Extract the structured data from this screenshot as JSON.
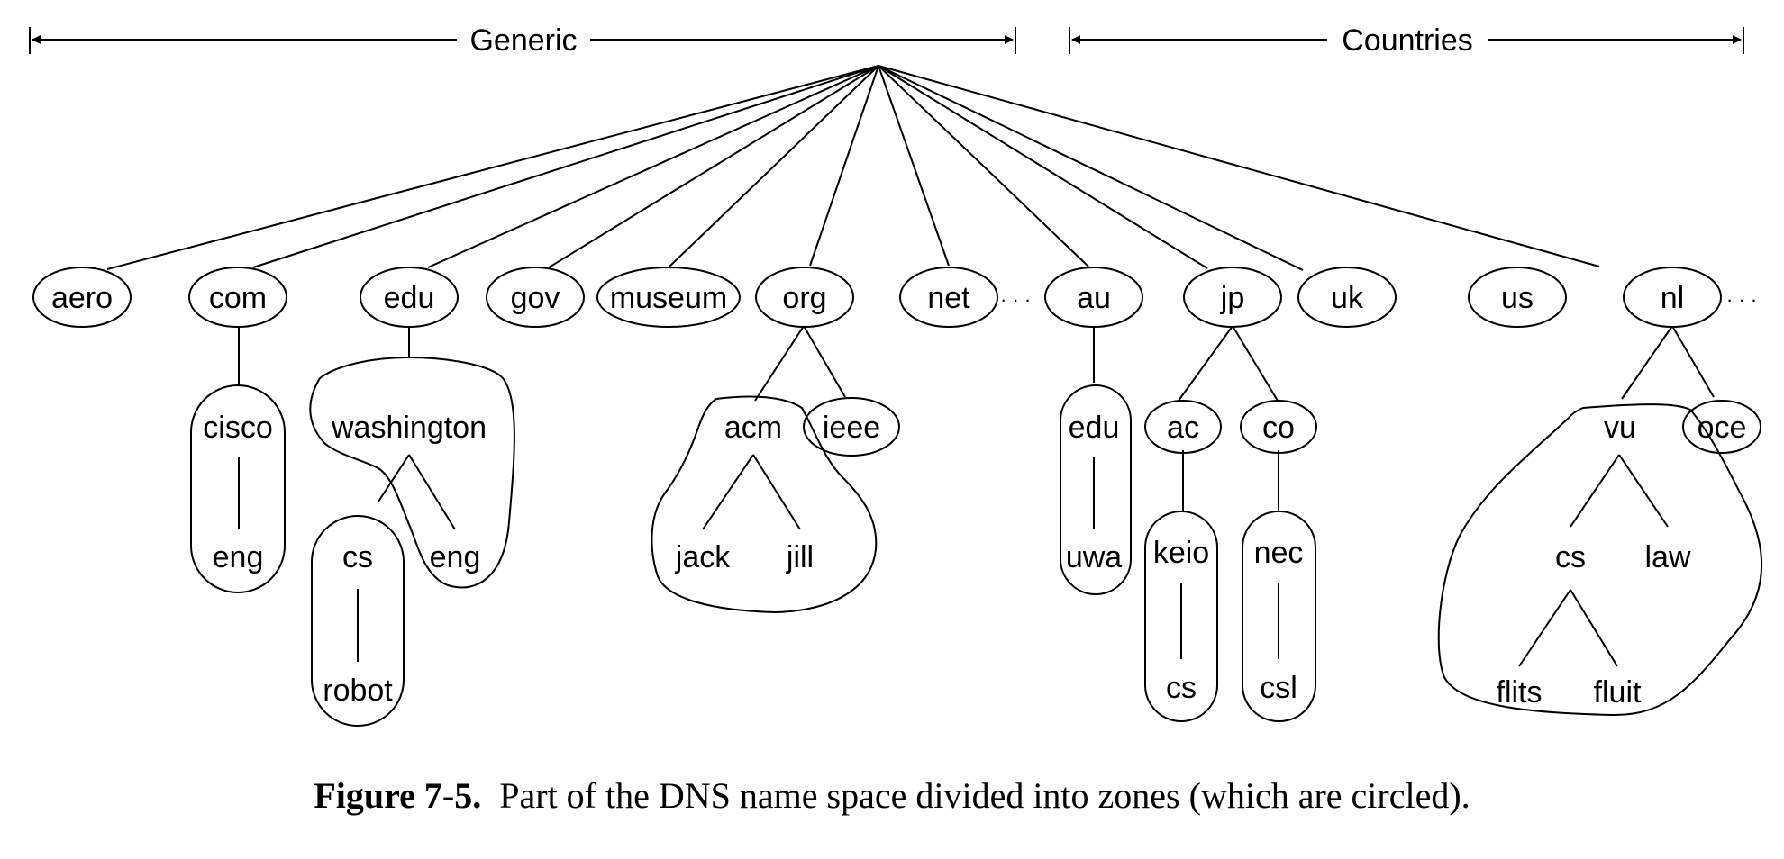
{
  "ranges": {
    "generic": "Generic",
    "countries": "Countries"
  },
  "nodes": {
    "aero": "aero",
    "com": "com",
    "edu": "edu",
    "gov": "gov",
    "museum": "museum",
    "org": "org",
    "net": "net",
    "au": "au",
    "jp": "jp",
    "uk": "uk",
    "us": "us",
    "nl": "nl",
    "cisco": "cisco",
    "com_eng": "eng",
    "washington": "washington",
    "wash_cs": "cs",
    "wash_eng": "eng",
    "robot": "robot",
    "acm": "acm",
    "ieee": "ieee",
    "jack": "jack",
    "jill": "jill",
    "au_edu": "edu",
    "uwa": "uwa",
    "ac": "ac",
    "co": "co",
    "keio": "keio",
    "keio_cs": "cs",
    "nec": "nec",
    "csl": "csl",
    "vu": "vu",
    "oce": "oce",
    "vu_cs": "cs",
    "law": "law",
    "flits": "flits",
    "fluit": "fluit"
  },
  "ellipsis": "· · ·",
  "caption": {
    "label": "Figure 7-5.",
    "text": "Part of the DNS name space divided into zones (which are circled)."
  }
}
